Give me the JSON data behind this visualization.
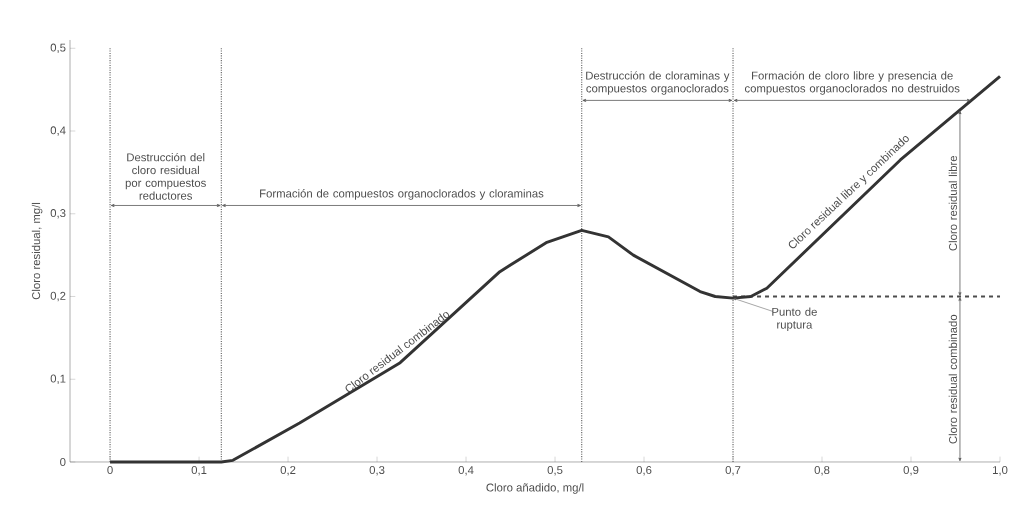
{
  "chart_data": {
    "type": "line",
    "xlabel": "Cloro añadido, mg/l",
    "ylabel": "Cloro residual, mg/l",
    "x": [
      0,
      0.125,
      0.138,
      0.213,
      0.326,
      0.438,
      0.49,
      0.53,
      0.56,
      0.588,
      0.663,
      0.68,
      0.7,
      0.72,
      0.738,
      0.888,
      1.0
    ],
    "series": [
      {
        "color": "#333333",
        "values": [
          0,
          0,
          0.002,
          0.047,
          0.12,
          0.23,
          0.265,
          0.28,
          0.272,
          0.25,
          0.206,
          0.2,
          0.198,
          0.2,
          0.21,
          0.365,
          0.466
        ]
      }
    ],
    "xlim": [
      -0.045,
      1.0
    ],
    "ylim": [
      0,
      0.51
    ],
    "xticks": [
      0,
      {
        "value": 0.1,
        "label": "0,1"
      },
      {
        "value": 0.2,
        "label": "0,2"
      },
      {
        "value": 0.3,
        "label": "0,3"
      },
      {
        "value": 0.4,
        "label": "0,4"
      },
      {
        "value": 0.5,
        "label": "0,5"
      },
      {
        "value": 0.6,
        "label": "0,6"
      },
      {
        "value": 0.7,
        "label": "0,7"
      },
      {
        "value": 0.8,
        "label": "0,8"
      },
      {
        "value": 0.9,
        "label": "0,9"
      },
      {
        "value": 1.0,
        "label": "1,0"
      }
    ],
    "yticks": [
      0,
      {
        "value": 0.1,
        "label": "0,1"
      },
      {
        "value": 0.2,
        "label": "0,2"
      },
      {
        "value": 0.3,
        "label": "0,3"
      },
      {
        "value": 0.4,
        "label": "0,4"
      },
      {
        "value": 0.5,
        "label": "0,5"
      }
    ],
    "ref_lines": [
      {
        "axis": "x",
        "value": 0,
        "line_style": "dotted"
      },
      {
        "axis": "x",
        "value": 0.125,
        "line_style": "dotted"
      },
      {
        "axis": "x",
        "value": 0.53,
        "line_style": "dotted"
      },
      {
        "axis": "x",
        "value": 0.7,
        "line_style": "dotted"
      },
      {
        "axis": "y",
        "value": 0.2,
        "line_style": "dashed"
      }
    ],
    "annotations": [
      "Destrucción del cloro residual por compuestos reductores",
      "Formación de compuestos organoclorados y cloraminas",
      "Destrucción de cloraminas y compuestos organoclorados",
      "Formación de cloro libre y presencia de compuestos organoclorados no destruidos",
      "Cloro residual combinado",
      "Cloro residual libre",
      {
        "text": "Cloro residual combinado",
        "x": 0.33,
        "y": 0.123
      },
      {
        "text": "Cloro residual libre y combinado",
        "x": 0.84,
        "y": 0.315
      },
      {
        "text": "Punto de ruptura",
        "x": 0.7,
        "y": 0.198
      }
    ],
    "legend": false,
    "grid": false,
    "marker": "none",
    "line_style": "solid"
  }
}
